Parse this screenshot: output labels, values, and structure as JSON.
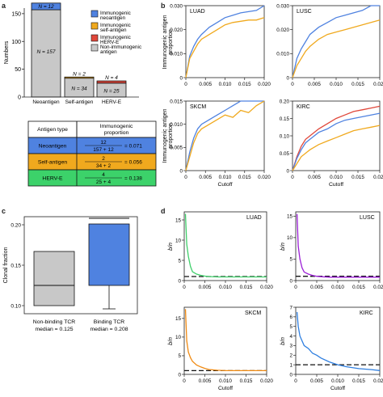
{
  "panels": {
    "a": "a",
    "b": "b",
    "c": "c",
    "d": "d"
  },
  "colors": {
    "neo": "#4f82e0",
    "self": "#f0a91e",
    "herv": "#e0473a",
    "non": "#c8c8c8",
    "green": "#3fcf6a",
    "purple": "#9b1fd6",
    "orange": "#f08a12",
    "blue": "#2f7fe0"
  },
  "chart_data": [
    {
      "id": "a-bar",
      "type": "bar",
      "ylabel": "Numbers",
      "ylim": [
        0,
        160
      ],
      "yticks": [
        0,
        50,
        100,
        150
      ],
      "categories": [
        "Neoantigen",
        "Self-antigen",
        "HERV-E"
      ],
      "series": [
        {
          "name": "Immunogenic neoantigen",
          "values": [
            12,
            0,
            0
          ]
        },
        {
          "name": "Immunogenic self-antigen",
          "values": [
            0,
            2,
            0
          ]
        },
        {
          "name": "Immunogenic HERV-E",
          "values": [
            0,
            0,
            4
          ]
        },
        {
          "name": "Non-immunogenic antigen",
          "values": [
            157,
            34,
            25
          ]
        }
      ],
      "bar_labels": [
        {
          "top": "N = 12",
          "bottom": "N = 157"
        },
        {
          "top": "N = 2",
          "bottom": "N = 34"
        },
        {
          "top": "N = 4",
          "bottom": "N = 25"
        }
      ],
      "legend": [
        "Immunogenic neoantigen",
        "Immunogenic self-antigen",
        "Immunogenic HERV-E",
        "Non-immunogenic antigen"
      ]
    },
    {
      "id": "a-table",
      "type": "table",
      "header": [
        "Antigen type",
        "Immunogenic proportion"
      ],
      "rows": [
        {
          "type": "Neoantigen",
          "num": "12",
          "den": "157 + 12",
          "val": "= 0.071"
        },
        {
          "type": "Self-antigen",
          "num": "2",
          "den": "34 + 2",
          "val": "= 0.056"
        },
        {
          "type": "HERV-E",
          "num": "4",
          "den": "25 + 4",
          "val": "= 0.138"
        }
      ]
    },
    {
      "id": "b",
      "type": "line",
      "ylabel": "Immunogenic antigen proportion",
      "xlabel": "Cutoff",
      "xticks": [
        "0",
        "0.005",
        "0.010",
        "0.015",
        "0.020"
      ],
      "xlim": [
        0,
        0.02
      ],
      "plots": [
        {
          "title": "LUAD",
          "ylim": [
            0,
            0.03
          ],
          "yticks": [
            "0",
            "0.010",
            "0.020",
            "0.030"
          ],
          "x": [
            0,
            0.001,
            0.002,
            0.003,
            0.004,
            0.006,
            0.008,
            0.01,
            0.012,
            0.014,
            0.016,
            0.018,
            0.02
          ],
          "series": [
            {
              "name": "neo",
              "values": [
                0,
                0.009,
                0.013,
                0.016,
                0.018,
                0.021,
                0.023,
                0.025,
                0.026,
                0.027,
                0.0275,
                0.028,
                0.03
              ]
            },
            {
              "name": "self",
              "values": [
                0,
                0.008,
                0.011,
                0.014,
                0.016,
                0.018,
                0.02,
                0.022,
                0.023,
                0.0235,
                0.024,
                0.024,
                0.025
              ]
            }
          ]
        },
        {
          "title": "LUSC",
          "ylim": [
            0,
            0.03
          ],
          "yticks": [
            "0",
            "0.010",
            "0.020",
            "0.030"
          ],
          "x": [
            0,
            0.001,
            0.002,
            0.003,
            0.004,
            0.006,
            0.008,
            0.01,
            0.012,
            0.014,
            0.016,
            0.018,
            0.02
          ],
          "series": [
            {
              "name": "neo",
              "values": [
                0,
                0.008,
                0.012,
                0.015,
                0.018,
                0.021,
                0.023,
                0.025,
                0.026,
                0.027,
                0.028,
                0.03,
                0.031
              ]
            },
            {
              "name": "self",
              "values": [
                0,
                0.005,
                0.008,
                0.011,
                0.013,
                0.016,
                0.018,
                0.019,
                0.02,
                0.021,
                0.022,
                0.023,
                0.024
              ]
            }
          ]
        },
        {
          "title": "SKCM",
          "ylim": [
            0,
            0.015
          ],
          "yticks": [
            "0",
            "0.005",
            "0.010",
            "0.015"
          ],
          "x": [
            0,
            0.001,
            0.002,
            0.003,
            0.004,
            0.006,
            0.008,
            0.01,
            0.012,
            0.014,
            0.016,
            0.018,
            0.02
          ],
          "series": [
            {
              "name": "neo",
              "values": [
                0,
                0.004,
                0.007,
                0.009,
                0.01,
                0.011,
                0.012,
                0.013,
                0.014,
                0.015,
                0.016,
                0.0165,
                0.0165
              ]
            },
            {
              "name": "self",
              "values": [
                0,
                0.003,
                0.006,
                0.008,
                0.009,
                0.01,
                0.011,
                0.012,
                0.0115,
                0.013,
                0.0125,
                0.014,
                0.015
              ]
            }
          ]
        },
        {
          "title": "KIRC",
          "ylim": [
            0,
            0.2
          ],
          "yticks": [
            "0",
            "0.05",
            "0.10",
            "0.15",
            "0.20"
          ],
          "x": [
            0,
            0.001,
            0.002,
            0.003,
            0.004,
            0.006,
            0.008,
            0.01,
            0.012,
            0.014,
            0.016,
            0.018,
            0.02
          ],
          "series": [
            {
              "name": "herv",
              "values": [
                0,
                0.04,
                0.07,
                0.09,
                0.1,
                0.12,
                0.135,
                0.15,
                0.16,
                0.17,
                0.175,
                0.18,
                0.185
              ]
            },
            {
              "name": "neo",
              "values": [
                0,
                0.035,
                0.06,
                0.08,
                0.09,
                0.11,
                0.12,
                0.135,
                0.145,
                0.15,
                0.155,
                0.16,
                0.165
              ]
            },
            {
              "name": "self",
              "values": [
                0,
                0.02,
                0.04,
                0.05,
                0.06,
                0.075,
                0.085,
                0.095,
                0.105,
                0.115,
                0.12,
                0.125,
                0.13
              ]
            }
          ]
        }
      ]
    },
    {
      "id": "c",
      "type": "box",
      "ylabel": "Clonal fraction",
      "ylim": [
        0.09,
        0.21
      ],
      "yticks": [
        "0.10",
        "0.15",
        "0.20"
      ],
      "groups": [
        {
          "label": "Non-binding TCR",
          "sublabel": "median = 0.125",
          "q1": 0.1,
          "median": 0.125,
          "q3": 0.167,
          "whisker_low": 0.1,
          "whisker_high": 0.167
        },
        {
          "label": "Binding TCR",
          "sublabel": "median = 0.208",
          "q1": 0.125,
          "median": 0.208,
          "q3": 0.25,
          "whisker_low": 0.083,
          "whisker_high": 0.25
        }
      ]
    },
    {
      "id": "d",
      "type": "line",
      "ylabel": "b/n",
      "xlabel": "Cutoff",
      "xticks": [
        "0",
        "0.005",
        "0.010",
        "0.015",
        "0.020"
      ],
      "xlim": [
        0,
        0.02
      ],
      "reference_line": 1,
      "plots": [
        {
          "title": "LUAD",
          "ylim": [
            0,
            17
          ],
          "yticks": [
            "0",
            "5",
            "10",
            "15"
          ],
          "color": "green",
          "x": [
            0.0003,
            0.0006,
            0.001,
            0.0015,
            0.002,
            0.003,
            0.004,
            0.005,
            0.006,
            0.008,
            0.01,
            0.012,
            0.015,
            0.02
          ],
          "values": [
            16.5,
            9,
            6,
            3.5,
            2.2,
            1.6,
            1.3,
            1.1,
            1.0,
            0.9,
            0.9,
            0.9,
            0.9,
            0.9
          ]
        },
        {
          "title": "LUSC",
          "ylim": [
            0,
            16
          ],
          "yticks": [
            "0",
            "5",
            "10",
            "15"
          ],
          "color": "purple",
          "x": [
            0.0003,
            0.0006,
            0.001,
            0.0015,
            0.002,
            0.003,
            0.004,
            0.005,
            0.006,
            0.008,
            0.01,
            0.012,
            0.015,
            0.02
          ],
          "values": [
            15.5,
            8,
            5,
            3,
            2,
            1.5,
            1.2,
            1.0,
            0.9,
            0.8,
            0.8,
            0.8,
            0.8,
            0.8
          ]
        },
        {
          "title": "SKCM",
          "ylim": [
            0,
            18
          ],
          "yticks": [
            "0",
            "5",
            "10",
            "15"
          ],
          "color": "orange",
          "x": [
            0.0003,
            0.0006,
            0.001,
            0.0015,
            0.002,
            0.003,
            0.004,
            0.005,
            0.006,
            0.008,
            0.01,
            0.012,
            0.015,
            0.02
          ],
          "values": [
            17.5,
            9,
            6,
            4.5,
            3.5,
            2.5,
            2,
            1.6,
            1.3,
            1.1,
            1.0,
            1.0,
            1.0,
            1.0
          ]
        },
        {
          "title": "KIRC",
          "ylim": [
            0,
            7
          ],
          "yticks": [
            "0",
            "1",
            "2",
            "3",
            "4",
            "5",
            "6",
            "7"
          ],
          "color": "blue",
          "x": [
            0.0003,
            0.0006,
            0.001,
            0.002,
            0.003,
            0.004,
            0.005,
            0.006,
            0.008,
            0.01,
            0.012,
            0.015,
            0.018,
            0.02
          ],
          "values": [
            6.5,
            5,
            4,
            3,
            2.7,
            2.2,
            2,
            1.7,
            1.3,
            1.0,
            0.8,
            0.6,
            0.5,
            0.4
          ]
        }
      ]
    }
  ]
}
